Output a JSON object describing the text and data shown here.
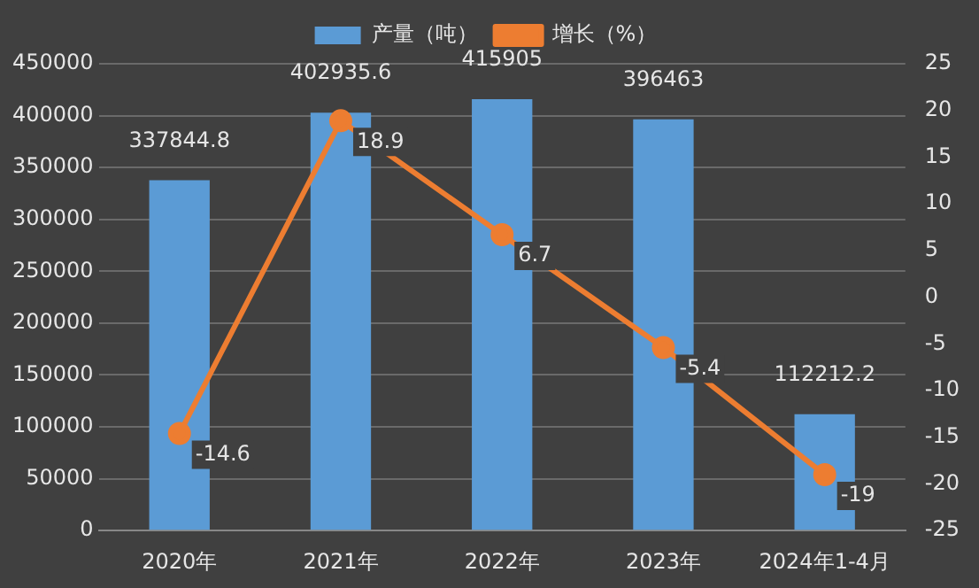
{
  "chart_data": {
    "type": "bar",
    "categories": [
      "2020年",
      "2021年",
      "2022年",
      "2023年",
      "2024年1-4月"
    ],
    "series": [
      {
        "name": "产量（吨）",
        "color": "#5b9bd5",
        "values": [
          337844.8,
          402935.6,
          415905,
          396463,
          112212.2
        ]
      },
      {
        "name": "增长（%）",
        "type": "line",
        "axis": "y2",
        "color": "#ed7d31",
        "values": [
          -14.6,
          18.9,
          6.7,
          -5.4,
          -19
        ]
      }
    ],
    "ylim": [
      0,
      450000
    ],
    "yticks": [
      0,
      50000,
      100000,
      150000,
      200000,
      250000,
      300000,
      350000,
      400000,
      450000
    ],
    "y2lim": [
      -25,
      25
    ],
    "y2ticks": [
      -25,
      -20,
      -15,
      -10,
      -5,
      0,
      5,
      10,
      15,
      20,
      25
    ],
    "grid": "y",
    "legend": "top",
    "marker": "circle",
    "data_labels": true
  }
}
